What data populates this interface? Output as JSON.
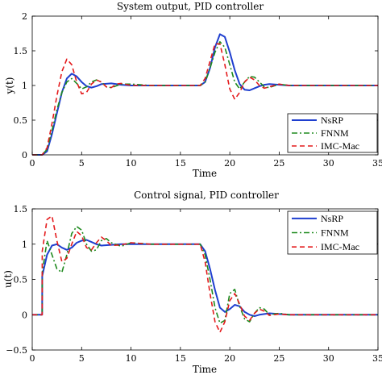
{
  "colors": {
    "NsRP": "#1f3fcf",
    "FNNM": "#1f8a1f",
    "IMC-Mac": "#e41a1c"
  },
  "chart_data": [
    {
      "type": "line",
      "title": "System output, PID controller",
      "xlabel": "Time",
      "ylabel": "y(t)",
      "xlim": [
        0,
        35
      ],
      "ylim": [
        0,
        2
      ],
      "xticks": [
        "0",
        "5",
        "10",
        "15",
        "20",
        "25",
        "30",
        "35"
      ],
      "yticks": [
        "0",
        "0.5",
        "1",
        "1.5",
        "2"
      ],
      "legend_position": "right-middle",
      "grid": false,
      "series": [
        {
          "name": "NsRP",
          "style": "solid",
          "x": [
            0,
            1.0,
            1.5,
            2.0,
            2.5,
            3.0,
            3.5,
            4.0,
            4.5,
            5.0,
            5.5,
            6.0,
            6.5,
            7.0,
            8.0,
            9.0,
            10.0,
            12.0,
            15.0,
            17.0,
            17.5,
            18.0,
            18.5,
            19.0,
            19.5,
            20.0,
            20.5,
            21.0,
            21.5,
            22.0,
            22.5,
            23.0,
            23.5,
            24.0,
            25.0,
            26.0,
            28.0,
            30.0,
            35.0
          ],
          "y": [
            0,
            0,
            0.05,
            0.3,
            0.6,
            0.9,
            1.1,
            1.17,
            1.13,
            1.05,
            0.99,
            0.97,
            0.99,
            1.02,
            1.03,
            1.01,
            1.0,
            1.0,
            1.0,
            1.0,
            1.05,
            1.25,
            1.55,
            1.74,
            1.7,
            1.48,
            1.22,
            1.02,
            0.94,
            0.93,
            0.96,
            0.99,
            1.01,
            1.02,
            1.01,
            1.0,
            1.0,
            1.0,
            1.0
          ]
        },
        {
          "name": "FNNM",
          "style": "dashdot",
          "x": [
            0,
            1.0,
            1.5,
            2.0,
            2.5,
            3.0,
            3.5,
            4.0,
            4.5,
            5.0,
            5.5,
            6.0,
            6.5,
            7.0,
            7.5,
            8.0,
            9.0,
            10.0,
            12.0,
            15.0,
            17.0,
            17.5,
            18.0,
            18.5,
            19.0,
            19.5,
            20.0,
            20.5,
            21.0,
            21.5,
            22.0,
            22.5,
            23.0,
            23.5,
            24.0,
            25.0,
            26.0,
            28.0,
            35.0
          ],
          "y": [
            0,
            0,
            0.08,
            0.35,
            0.65,
            0.9,
            1.05,
            1.1,
            1.03,
            0.95,
            0.98,
            1.05,
            1.08,
            1.05,
            0.98,
            0.97,
            1.02,
            1.02,
            1.0,
            1.0,
            1.0,
            1.05,
            1.25,
            1.48,
            1.63,
            1.55,
            1.3,
            1.05,
            0.95,
            1.05,
            1.13,
            1.12,
            1.05,
            0.98,
            0.97,
            1.02,
            1.0,
            1.0,
            1.0
          ]
        },
        {
          "name": "IMC-Mac",
          "style": "dashed",
          "x": [
            0,
            1.0,
            1.5,
            2.0,
            2.5,
            3.0,
            3.5,
            4.0,
            4.5,
            5.0,
            5.5,
            6.0,
            6.5,
            7.0,
            7.5,
            8.0,
            8.5,
            9.0,
            10.0,
            12.0,
            15.0,
            17.0,
            17.5,
            18.0,
            18.5,
            19.0,
            19.5,
            20.0,
            20.5,
            21.0,
            21.5,
            22.0,
            22.5,
            23.0,
            23.5,
            24.0,
            25.0,
            26.0,
            28.0,
            35.0
          ],
          "y": [
            0,
            0,
            0.1,
            0.45,
            0.85,
            1.2,
            1.38,
            1.3,
            1.05,
            0.88,
            0.9,
            1.02,
            1.08,
            1.05,
            0.98,
            0.97,
            1.02,
            1.03,
            1.0,
            1.0,
            1.0,
            1.0,
            1.1,
            1.35,
            1.6,
            1.6,
            1.3,
            0.95,
            0.8,
            0.9,
            1.05,
            1.12,
            1.08,
            1.0,
            0.96,
            0.98,
            1.02,
            1.0,
            1.0,
            1.0
          ]
        }
      ]
    },
    {
      "type": "line",
      "title": "Control signal, PID controller",
      "xlabel": "Time",
      "ylabel": "u(t)",
      "xlim": [
        0,
        35
      ],
      "ylim": [
        -0.5,
        1.5
      ],
      "xticks": [
        "0",
        "5",
        "10",
        "15",
        "20",
        "25",
        "30",
        "35"
      ],
      "yticks": [
        "−0.5",
        "0",
        "0.5",
        "1",
        "1.5"
      ],
      "legend_position": "top-right",
      "grid": false,
      "series": [
        {
          "name": "NsRP",
          "style": "solid",
          "x": [
            0,
            1.0,
            1.01,
            1.5,
            2.0,
            2.5,
            3.0,
            3.5,
            4.0,
            4.5,
            5.0,
            5.5,
            6.0,
            6.5,
            7.0,
            8.0,
            9.0,
            10.0,
            12.0,
            15.0,
            17.0,
            17.5,
            18.0,
            18.5,
            19.0,
            19.5,
            20.0,
            20.5,
            21.0,
            21.5,
            22.0,
            22.5,
            23.0,
            24.0,
            25.0,
            26.0,
            28.0,
            30.0,
            35.0
          ],
          "y": [
            0,
            0,
            0.55,
            0.85,
            0.98,
            1.0,
            0.95,
            0.92,
            0.95,
            1.02,
            1.05,
            1.06,
            1.03,
            1.0,
            0.98,
            0.99,
            1.0,
            1.0,
            1.0,
            1.0,
            1.0,
            0.9,
            0.65,
            0.35,
            0.1,
            0.04,
            0.08,
            0.14,
            0.12,
            0.04,
            0.0,
            -0.02,
            0.0,
            0.02,
            0.01,
            0.0,
            0.0,
            0.0,
            0.0
          ]
        },
        {
          "name": "FNNM",
          "style": "dashdot",
          "x": [
            0,
            1.0,
            1.01,
            1.5,
            2.0,
            2.5,
            3.0,
            3.5,
            4.0,
            4.5,
            5.0,
            5.5,
            6.0,
            6.5,
            7.0,
            7.5,
            8.0,
            9.0,
            10.0,
            12.0,
            15.0,
            17.0,
            17.5,
            18.0,
            18.5,
            19.0,
            19.5,
            20.0,
            20.5,
            21.0,
            21.5,
            22.0,
            22.5,
            23.0,
            23.5,
            24.0,
            25.0,
            26.0,
            28.0,
            35.0
          ],
          "y": [
            0,
            0,
            0.6,
            1.05,
            0.85,
            0.65,
            0.6,
            0.85,
            1.15,
            1.25,
            1.2,
            1.0,
            0.9,
            0.92,
            1.05,
            1.08,
            1.02,
            0.97,
            1.02,
            1.0,
            1.0,
            1.0,
            0.85,
            0.5,
            0.1,
            -0.12,
            -0.08,
            0.3,
            0.36,
            0.12,
            -0.06,
            -0.1,
            0.02,
            0.1,
            0.08,
            0.0,
            0.02,
            0.0,
            0.0,
            0.0
          ]
        },
        {
          "name": "IMC-Mac",
          "style": "dashed",
          "x": [
            0,
            1.0,
            1.01,
            1.5,
            2.0,
            2.5,
            3.0,
            3.5,
            4.0,
            4.5,
            5.0,
            5.5,
            6.0,
            6.5,
            7.0,
            7.5,
            8.0,
            9.0,
            10.0,
            12.0,
            15.0,
            17.0,
            17.5,
            18.0,
            18.5,
            19.0,
            19.5,
            20.0,
            20.5,
            21.0,
            21.5,
            22.0,
            22.5,
            23.0,
            23.5,
            24.0,
            25.0,
            26.0,
            28.0,
            35.0
          ],
          "y": [
            0,
            0,
            0.9,
            1.35,
            1.4,
            1.05,
            0.75,
            0.8,
            1.0,
            1.18,
            1.12,
            0.95,
            0.92,
            1.02,
            1.1,
            1.05,
            0.98,
            0.99,
            1.02,
            1.0,
            1.0,
            1.0,
            0.75,
            0.3,
            -0.1,
            -0.25,
            -0.1,
            0.2,
            0.3,
            0.15,
            -0.02,
            -0.08,
            0.02,
            0.08,
            0.05,
            -0.01,
            0.01,
            0.0,
            0.0,
            0.0
          ]
        }
      ]
    }
  ]
}
